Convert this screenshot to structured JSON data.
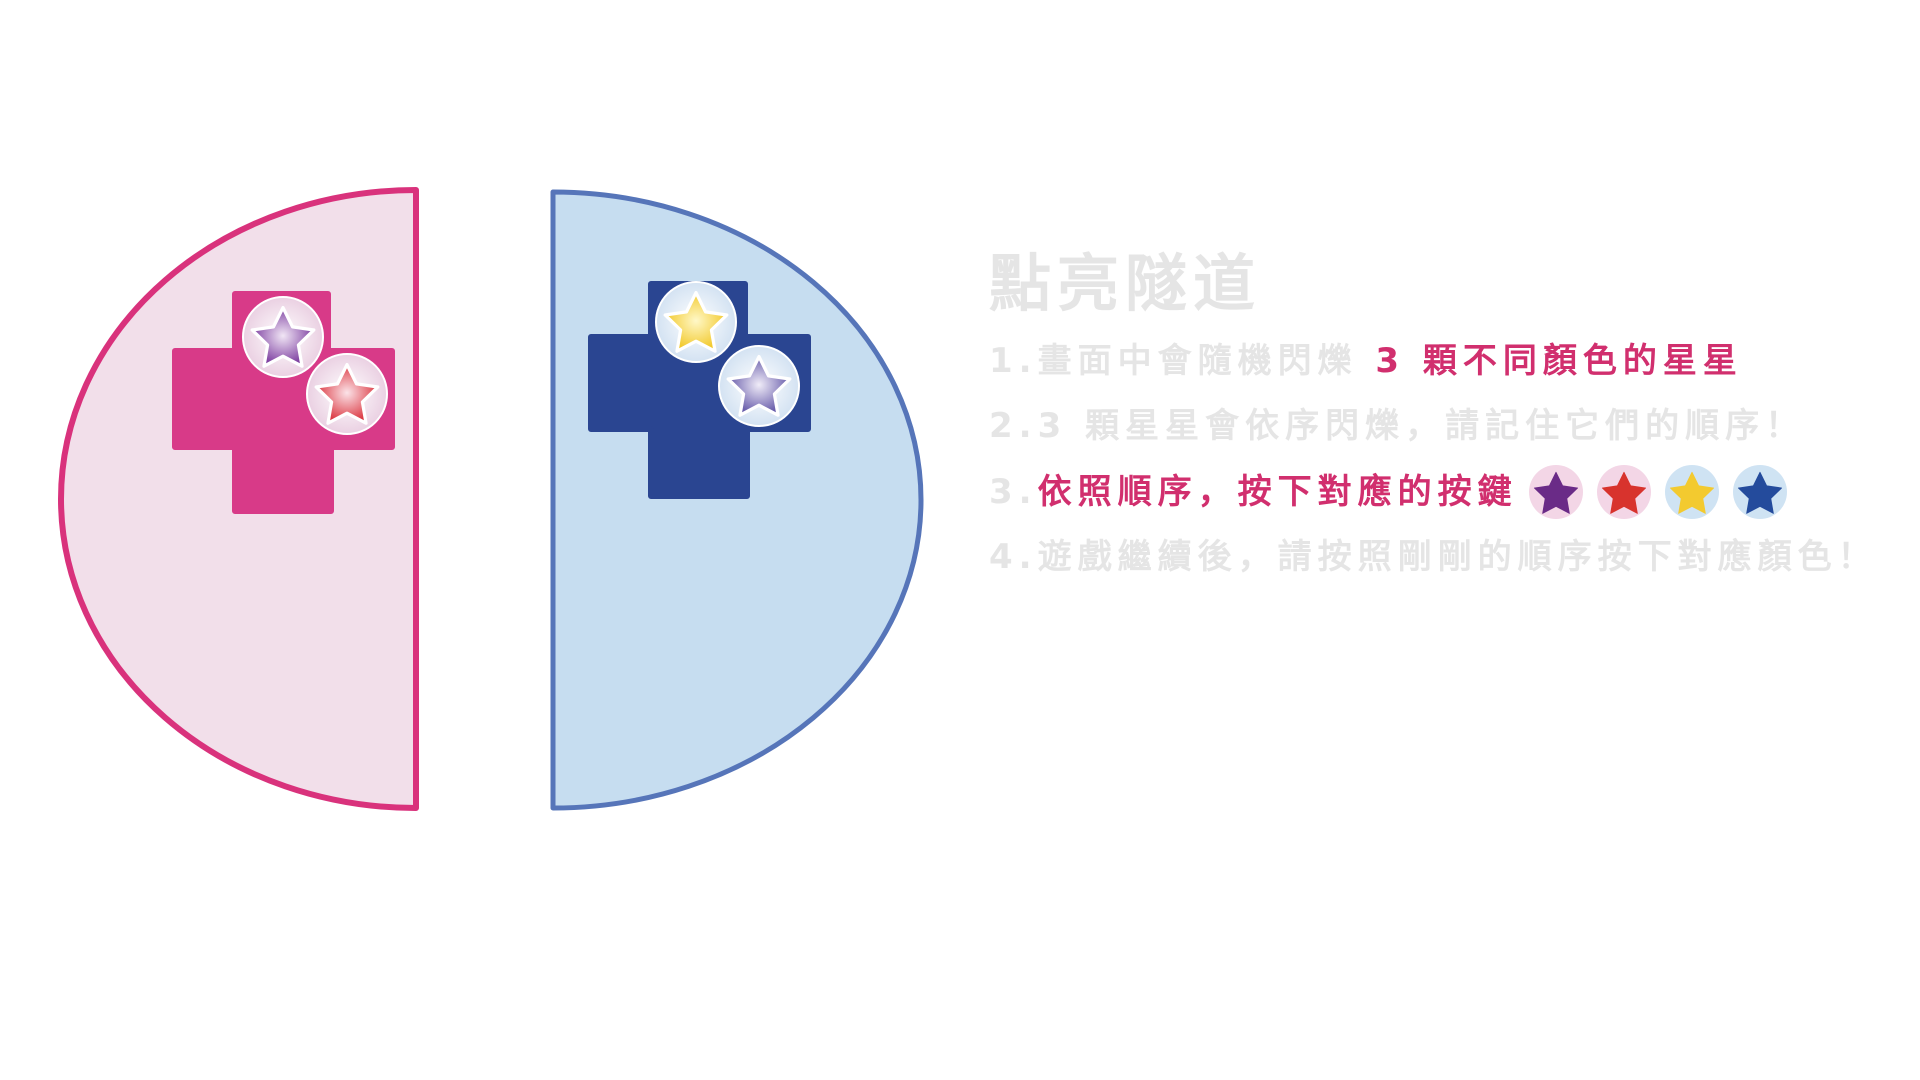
{
  "colors": {
    "background": "#ffffff",
    "muted_text": "#e5e5e5",
    "highlight_text": "#d12f6e"
  },
  "instructions": {
    "title": "點亮隧道",
    "line1": {
      "prefix": "1.畫面中會隨機閃爍 ",
      "highlight": "3 顆不同顏色的星星"
    },
    "line2": "2.3 顆星星會依序閃爍，請記住它們的順序！",
    "line3": {
      "prefix": "3.",
      "highlight": "依照順序，按下對應的按鍵"
    },
    "line4": "4.遊戲繼續後，請按照剛剛的順序按下對應顏色！",
    "key_icons": [
      {
        "icon": "purple-star-icon",
        "star_color": "#6a2b87",
        "circle_color": "#f3d6e6"
      },
      {
        "icon": "red-star-icon",
        "star_color": "#d8332d",
        "circle_color": "#f3d6e6"
      },
      {
        "icon": "yellow-star-icon",
        "star_color": "#f3ca2f",
        "circle_color": "#cfe3f3"
      },
      {
        "icon": "blue-star-icon",
        "star_color": "#244b9c",
        "circle_color": "#cfe3f3"
      }
    ]
  },
  "tunnel": {
    "left_half": {
      "fill": "#f2dfea",
      "border": "#d9327c",
      "pad_color": "#d83a88",
      "ring_color": "#ead0e2",
      "buttons": [
        {
          "icon": "purple-star-icon",
          "star_color": "#74329a",
          "glow_color": "#f1e6f5"
        },
        {
          "icon": "red-star-icon",
          "star_color": "#d92a34",
          "glow_color": "#fbe3e8"
        }
      ]
    },
    "right_half": {
      "fill": "#c6ddf0",
      "border": "#5675b9",
      "pad_color": "#2a4591",
      "ring_color": "#d3e2f2",
      "buttons": [
        {
          "icon": "yellow-star-icon",
          "star_color": "#f1c51f",
          "glow_color": "#fff8c8"
        },
        {
          "icon": "lavender-star-icon",
          "star_color": "#5b4fa3",
          "glow_color": "#f0ecf8"
        }
      ]
    }
  }
}
